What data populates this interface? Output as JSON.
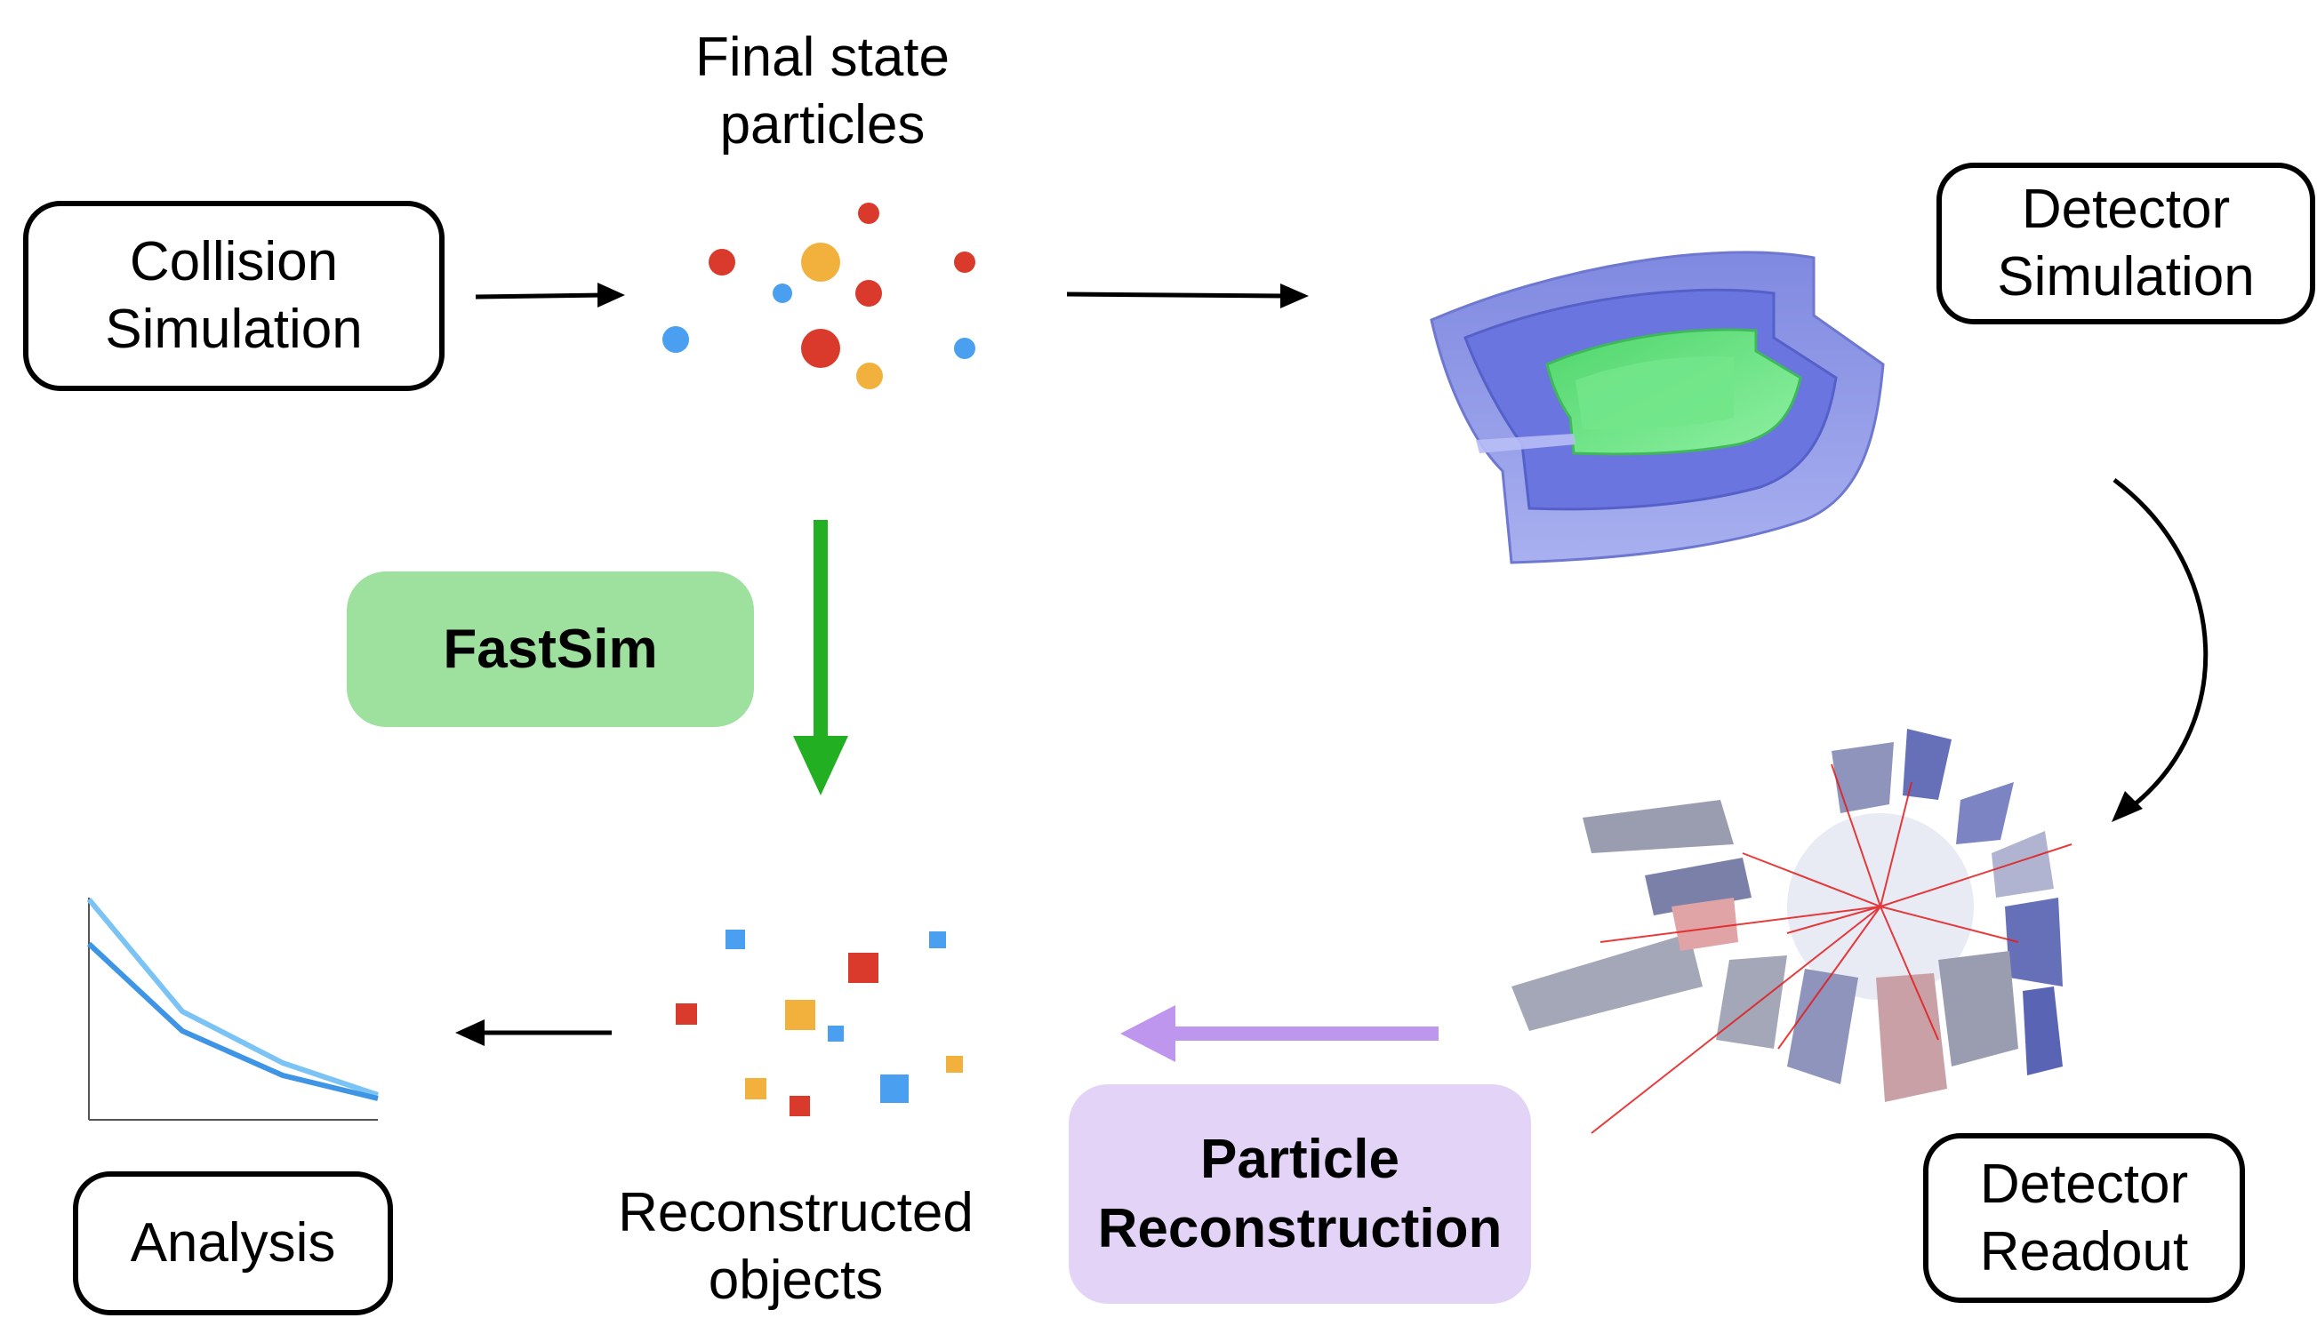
{
  "nodes": {
    "collision_simulation": "Collision\nSimulation",
    "final_state_particles": "Final state\nparticles",
    "detector_simulation": "Detector\nSimulation",
    "detector_readout": "Detector\nReadout",
    "particle_reconstruction": "Particle\nReconstruction",
    "reconstructed_objects": "Reconstructed\nobjects",
    "fastsim": "FastSim",
    "analysis": "Analysis"
  },
  "colors": {
    "red": "#D93A2B",
    "orange": "#F2B13D",
    "blue": "#4A9FF0",
    "fastsim_fill": "#9EE09E",
    "fastsim_arrow": "#22B022",
    "reco_fill": "#E3D4F7",
    "reco_arrow": "#BE96EE",
    "detector_outer": "#8E98E6",
    "detector_inner": "#64E07C",
    "plot_line_light": "#7BC3F5",
    "plot_line_dark": "#3E95E6"
  }
}
